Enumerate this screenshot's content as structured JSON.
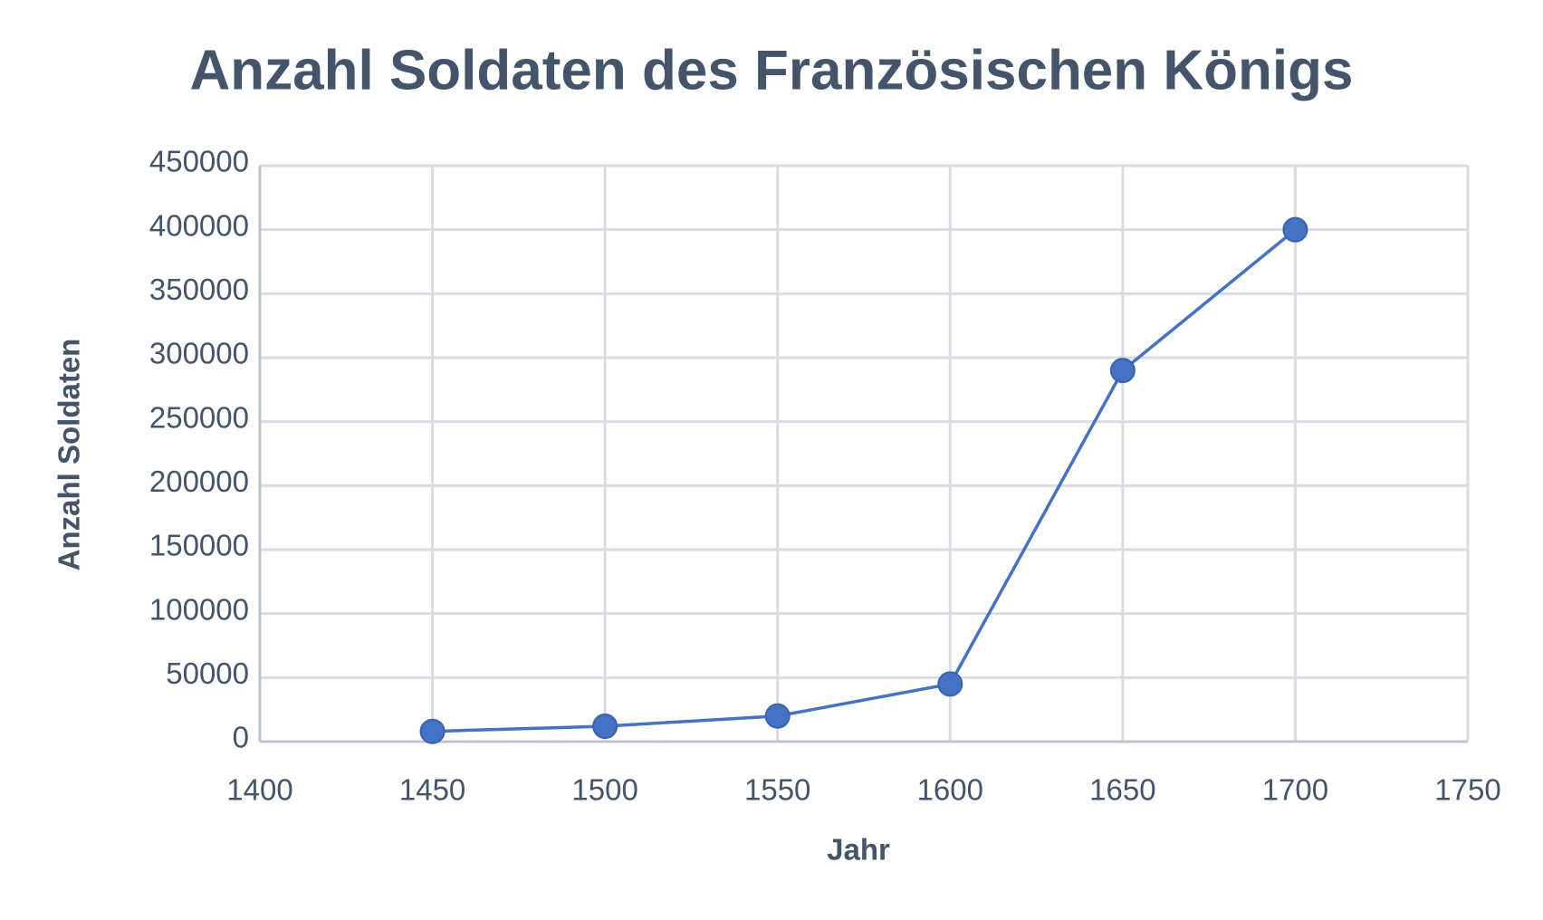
{
  "chart_data": {
    "type": "line",
    "title": "Anzahl Soldaten des Französischen Königs",
    "xlabel": "Jahr",
    "ylabel": "Anzahl Soldaten",
    "x": [
      1450,
      1500,
      1550,
      1600,
      1650,
      1700
    ],
    "series": [
      {
        "name": "Anzahl Soldaten",
        "color": "#4472c4",
        "values": [
          8000,
          12000,
          20000,
          45000,
          290000,
          400000
        ]
      }
    ],
    "xlim": [
      1400,
      1750
    ],
    "xticks": [
      1400,
      1450,
      1500,
      1550,
      1600,
      1650,
      1700,
      1750
    ],
    "ylim": [
      0,
      450000
    ],
    "yticks": [
      0,
      50000,
      100000,
      150000,
      200000,
      250000,
      300000,
      350000,
      400000,
      450000
    ],
    "grid": true
  }
}
